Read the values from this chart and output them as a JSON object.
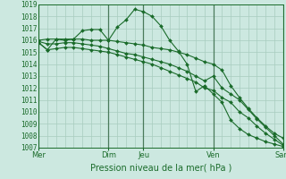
{
  "title": "Pression niveau de la mer( hPa )",
  "ylim": [
    1007,
    1019
  ],
  "yticks": [
    1007,
    1008,
    1009,
    1010,
    1011,
    1012,
    1013,
    1014,
    1015,
    1016,
    1017,
    1018,
    1019
  ],
  "day_labels": [
    "Mer",
    "Dim",
    "Jeu",
    "Ven",
    "Sam"
  ],
  "day_positions": [
    0,
    48,
    72,
    120,
    168
  ],
  "bg_color": "#cce8e0",
  "grid_color": "#a8ccbe",
  "line_color": "#1a6b2a",
  "series": [
    {
      "x": [
        0,
        6,
        12,
        18,
        24,
        30,
        36,
        42,
        48,
        54,
        60,
        66,
        72,
        78,
        84,
        90,
        96,
        102,
        108,
        114,
        120,
        126,
        132,
        138,
        144,
        150,
        156,
        162,
        168
      ],
      "y": [
        1015.8,
        1015.2,
        1016.1,
        1016.0,
        1016.1,
        1016.8,
        1016.9,
        1016.9,
        1016.0,
        1017.1,
        1017.7,
        1018.6,
        1018.4,
        1018.0,
        1017.2,
        1016.0,
        1015.1,
        1014.0,
        1011.7,
        1012.2,
        1011.5,
        1010.8,
        1009.3,
        1008.6,
        1008.1,
        1007.8,
        1007.5,
        1007.3,
        1007.1
      ]
    },
    {
      "x": [
        0,
        6,
        12,
        18,
        24,
        30,
        36,
        42,
        48,
        54,
        60,
        66,
        72,
        78,
        84,
        90,
        96,
        102,
        108,
        114,
        120,
        126,
        132,
        138,
        144,
        150,
        156,
        162,
        168
      ],
      "y": [
        1016.0,
        1016.1,
        1016.1,
        1016.1,
        1016.1,
        1016.1,
        1016.0,
        1016.0,
        1016.0,
        1015.9,
        1015.8,
        1015.7,
        1015.6,
        1015.4,
        1015.3,
        1015.2,
        1015.0,
        1014.8,
        1014.5,
        1014.2,
        1014.0,
        1013.5,
        1012.2,
        1011.2,
        1010.3,
        1009.5,
        1008.8,
        1008.2,
        1007.8
      ]
    },
    {
      "x": [
        0,
        6,
        12,
        18,
        24,
        30,
        36,
        42,
        48,
        54,
        60,
        66,
        72,
        78,
        84,
        90,
        96,
        102,
        108,
        114,
        120,
        126,
        132,
        138,
        144,
        150,
        156,
        162,
        168
      ],
      "y": [
        1015.9,
        1015.7,
        1015.7,
        1015.8,
        1015.8,
        1015.7,
        1015.6,
        1015.5,
        1015.3,
        1015.1,
        1014.9,
        1014.8,
        1014.6,
        1014.4,
        1014.2,
        1014.0,
        1013.7,
        1013.4,
        1013.0,
        1012.6,
        1013.0,
        1012.0,
        1011.5,
        1011.0,
        1010.2,
        1009.4,
        1008.7,
        1008.0,
        1007.3
      ]
    },
    {
      "x": [
        0,
        6,
        12,
        18,
        24,
        30,
        36,
        42,
        48,
        54,
        60,
        66,
        72,
        78,
        84,
        90,
        96,
        102,
        108,
        114,
        120,
        126,
        132,
        138,
        144,
        150,
        156,
        162,
        168
      ],
      "y": [
        1015.8,
        1015.2,
        1015.3,
        1015.4,
        1015.4,
        1015.3,
        1015.2,
        1015.1,
        1015.0,
        1014.8,
        1014.6,
        1014.4,
        1014.2,
        1014.0,
        1013.7,
        1013.4,
        1013.1,
        1012.8,
        1012.5,
        1012.0,
        1011.8,
        1011.2,
        1010.8,
        1010.0,
        1009.5,
        1008.8,
        1008.2,
        1007.7,
        1007.2
      ]
    }
  ]
}
